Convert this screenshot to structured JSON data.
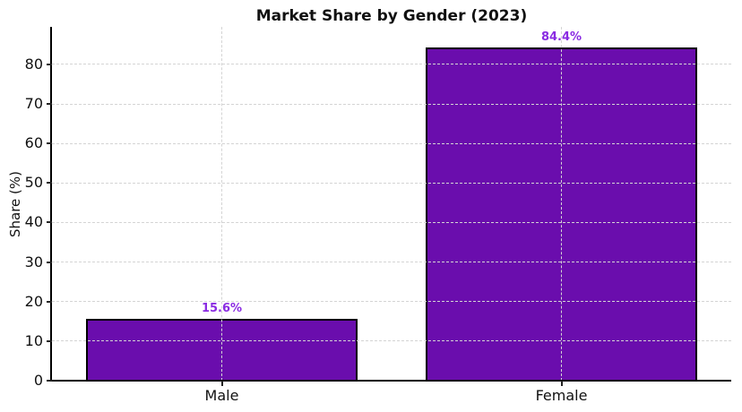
{
  "chart_data": {
    "type": "bar",
    "title": "Market Share by Gender (2023)",
    "xlabel": "",
    "ylabel": "Share (%)",
    "categories": [
      "Male",
      "Female"
    ],
    "values": [
      15.6,
      84.4
    ],
    "value_labels": [
      "15.6%",
      "84.4%"
    ],
    "yticks": [
      0,
      10,
      20,
      30,
      40,
      50,
      60,
      70,
      80
    ],
    "ylim": [
      0,
      89.5
    ],
    "bar_width_fraction": 0.8,
    "bar_color": "#6a0dad",
    "bar_edge_color": "#000000",
    "value_label_color": "#8a2be2",
    "grid": true,
    "grid_color": "#d4d4d4",
    "grid_style": "dashed",
    "legend": "none",
    "background_color": "#ffffff"
  }
}
